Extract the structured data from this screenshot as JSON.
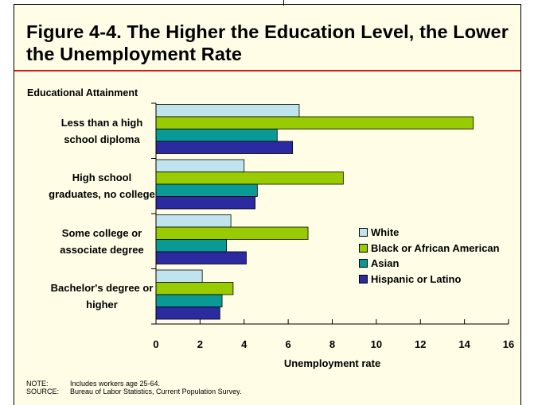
{
  "title": "Figure 4-4.  The Higher the Education Level, the Lower the Unemployment Rate",
  "chart_data": {
    "type": "bar",
    "orientation": "horizontal",
    "title": "Figure 4-4.  The Higher the Education Level, the Lower the Unemployment Rate",
    "ylabel": "Educational Attainment",
    "xlabel": "Unemployment rate",
    "categories": [
      "Less than a high school diploma",
      "High school graduates, no college",
      "Some college or associate degree",
      "Bachelor's degree or higher"
    ],
    "category_lines": [
      [
        "Less than a high",
        "school diploma"
      ],
      [
        "High school",
        "graduates, no college"
      ],
      [
        "Some college or",
        "associate degree"
      ],
      [
        "Bachelor's degree or",
        "higher"
      ]
    ],
    "series": [
      {
        "name": "White",
        "color": "#bfe4ee",
        "values": [
          6.5,
          4.0,
          3.4,
          2.1
        ]
      },
      {
        "name": "Black or African American",
        "color": "#99cc00",
        "values": [
          14.4,
          8.5,
          6.9,
          3.5
        ]
      },
      {
        "name": "Asian",
        "color": "#0a9a96",
        "values": [
          5.5,
          4.6,
          3.2,
          3.0
        ]
      },
      {
        "name": "Hispanic or Latino",
        "color": "#2b2aa0",
        "values": [
          6.2,
          4.5,
          4.1,
          2.9
        ]
      }
    ],
    "xlim": [
      0,
      16
    ],
    "xticks": [
      "0",
      "2",
      "4",
      "6",
      "8",
      "10",
      "12",
      "14",
      "16"
    ],
    "grid": false,
    "legend_position": "right"
  },
  "notes": {
    "note_key": "NOTE:",
    "note_text": "Includes workers age 25-64.",
    "source_key": "SOURCE:",
    "source_text": "Bureau of Labor Statistics, Current Population Survey."
  }
}
